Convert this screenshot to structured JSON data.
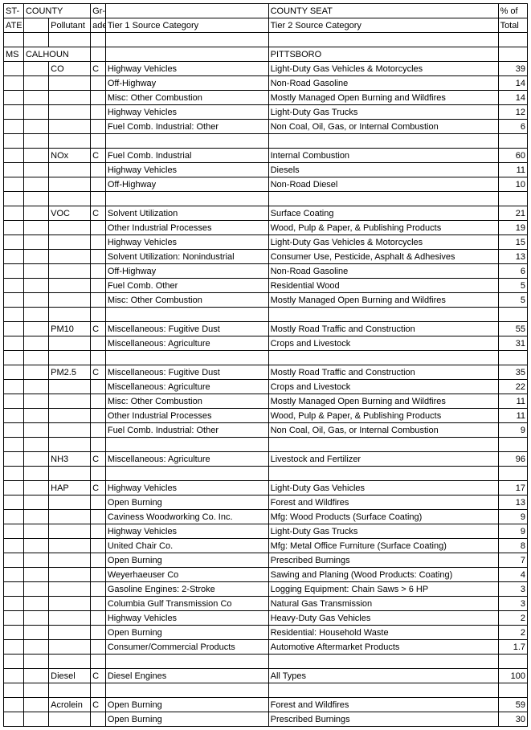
{
  "headers": {
    "state_top": "ST-",
    "state_bot": "ATE",
    "county": "COUNTY",
    "pollutant": "Pollutant",
    "grade_top": "Gr-",
    "grade_bot": "ade",
    "tier1": "Tier 1 Source Category",
    "county_seat": "COUNTY SEAT",
    "tier2": "Tier 2 Source Category",
    "pct_top": "% of",
    "pct_bot": "Total"
  },
  "rows": [
    {
      "t": "blank"
    },
    {
      "t": "header",
      "state": "MS",
      "county": "CALHOUN",
      "seat": "PITTSBORO"
    },
    {
      "t": "data",
      "pollutant": "CO",
      "grade": "C",
      "tier1": "Highway Vehicles",
      "tier2": "Light-Duty Gas Vehicles & Motorcycles",
      "pct": "39"
    },
    {
      "t": "data",
      "tier1": "Off-Highway",
      "tier2": "Non-Road Gasoline",
      "pct": "14"
    },
    {
      "t": "data",
      "tier1": "Misc: Other Combustion",
      "tier2": "Mostly Managed Open Burning and Wildfires",
      "pct": "14"
    },
    {
      "t": "data",
      "tier1": "Highway Vehicles",
      "tier2": "Light-Duty Gas Trucks",
      "pct": "12"
    },
    {
      "t": "data",
      "tier1": "Fuel Comb. Industrial: Other",
      "tier2": "Non Coal, Oil, Gas, or Internal Combustion",
      "pct": "6"
    },
    {
      "t": "blank"
    },
    {
      "t": "data",
      "pollutant": "NOx",
      "grade": "C",
      "tier1": "Fuel Comb. Industrial",
      "tier2": "Internal Combustion",
      "pct": "60"
    },
    {
      "t": "data",
      "tier1": "Highway Vehicles",
      "tier2": "Diesels",
      "pct": "11"
    },
    {
      "t": "data",
      "tier1": "Off-Highway",
      "tier2": "Non-Road Diesel",
      "pct": "10"
    },
    {
      "t": "blank"
    },
    {
      "t": "data",
      "pollutant": "VOC",
      "grade": "C",
      "tier1": "Solvent Utilization",
      "tier2": "Surface Coating",
      "pct": "21"
    },
    {
      "t": "data",
      "tier1": "Other Industrial Processes",
      "tier2": "Wood, Pulp & Paper, & Publishing Products",
      "pct": "19"
    },
    {
      "t": "data",
      "tier1": "Highway Vehicles",
      "tier2": "Light-Duty Gas Vehicles & Motorcycles",
      "pct": "15"
    },
    {
      "t": "data",
      "tier1": "Solvent Utilization: Nonindustrial",
      "tier2": "Consumer Use, Pesticide, Asphalt & Adhesives",
      "pct": "13"
    },
    {
      "t": "data",
      "tier1": "Off-Highway",
      "tier2": "Non-Road Gasoline",
      "pct": "6"
    },
    {
      "t": "data",
      "tier1": "Fuel Comb. Other",
      "tier2": "Residential Wood",
      "pct": "5"
    },
    {
      "t": "data",
      "tier1": "Misc: Other Combustion",
      "tier2": "Mostly Managed Open Burning and Wildfires",
      "pct": "5"
    },
    {
      "t": "blank"
    },
    {
      "t": "data",
      "pollutant": "PM10",
      "grade": "C",
      "tier1": "Miscellaneous: Fugitive Dust",
      "tier2": "Mostly Road Traffic and Construction",
      "pct": "55"
    },
    {
      "t": "data",
      "tier1": "Miscellaneous: Agriculture",
      "tier2": "Crops and Livestock",
      "pct": "31"
    },
    {
      "t": "blank"
    },
    {
      "t": "data",
      "pollutant": "PM2.5",
      "grade": "C",
      "tier1": "Miscellaneous: Fugitive Dust",
      "tier2": "Mostly Road Traffic and Construction",
      "pct": "35"
    },
    {
      "t": "data",
      "tier1": "Miscellaneous: Agriculture",
      "tier2": "Crops and Livestock",
      "pct": "22"
    },
    {
      "t": "data",
      "tier1": "Misc: Other Combustion",
      "tier2": "Mostly Managed Open Burning and Wildfires",
      "pct": "11"
    },
    {
      "t": "data",
      "tier1": "Other Industrial Processes",
      "tier2": "Wood, Pulp & Paper, & Publishing Products",
      "pct": "11"
    },
    {
      "t": "data",
      "tier1": "Fuel Comb. Industrial: Other",
      "tier2": "Non Coal, Oil, Gas, or Internal Combustion",
      "pct": "9"
    },
    {
      "t": "blank"
    },
    {
      "t": "data",
      "pollutant": "NH3",
      "grade": "C",
      "tier1": "Miscellaneous: Agriculture",
      "tier2": "Livestock and Fertilizer",
      "pct": "96"
    },
    {
      "t": "blank"
    },
    {
      "t": "data",
      "pollutant": "HAP",
      "grade": "C",
      "tier1": "Highway Vehicles",
      "tier2": "Light-Duty Gas Vehicles",
      "pct": "17"
    },
    {
      "t": "data",
      "tier1": "Open Burning",
      "tier2": "Forest and Wildfires",
      "pct": "13"
    },
    {
      "t": "data",
      "tier1": "Caviness Woodworking Co. Inc.",
      "tier2": "Mfg: Wood Products (Surface Coating)",
      "pct": "9"
    },
    {
      "t": "data",
      "tier1": "Highway Vehicles",
      "tier2": "Light-Duty Gas Trucks",
      "pct": "9"
    },
    {
      "t": "data",
      "tier1": "United Chair Co.",
      "tier2": "Mfg: Metal Office Furniture (Surface Coating)",
      "pct": "8"
    },
    {
      "t": "data",
      "tier1": "Open Burning",
      "tier2": "Prescribed Burnings",
      "pct": "7"
    },
    {
      "t": "data",
      "tier1": "Weyerhaeuser Co",
      "tier2": "Sawing and Planing (Wood Products: Coating)",
      "pct": "4"
    },
    {
      "t": "data",
      "tier1": "Gasoline Engines: 2-Stroke",
      "tier2": "Logging Equipment: Chain Saws > 6 HP",
      "pct": "3"
    },
    {
      "t": "data",
      "tier1": "Columbia Gulf Transmission Co",
      "tier2": "Natural Gas Transmission",
      "pct": "3"
    },
    {
      "t": "data",
      "tier1": "Highway Vehicles",
      "tier2": "Heavy-Duty Gas Vehicles",
      "pct": "2"
    },
    {
      "t": "data",
      "tier1": "Open Burning",
      "tier2": "Residential: Household Waste",
      "pct": "2"
    },
    {
      "t": "data",
      "tier1": "Consumer/Commercial Products",
      "tier2": "Automotive Aftermarket Products",
      "pct": "1.7"
    },
    {
      "t": "blank"
    },
    {
      "t": "data",
      "pollutant": "Diesel",
      "grade": "C",
      "tier1": "Diesel Engines",
      "tier2": "All Types",
      "pct": "100"
    },
    {
      "t": "blank"
    },
    {
      "t": "data",
      "pollutant": "Acrolein",
      "grade": "C",
      "tier1": "Open Burning",
      "tier2": "Forest and Wildfires",
      "pct": "59"
    },
    {
      "t": "data",
      "tier1": "Open Burning",
      "tier2": "Prescribed Burnings",
      "pct": "30"
    }
  ]
}
